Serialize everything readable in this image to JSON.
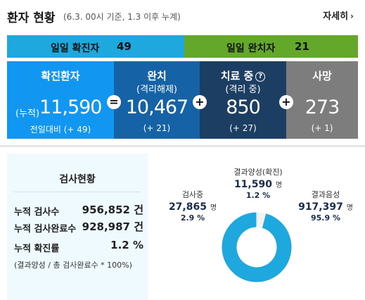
{
  "header": {
    "title": "환자 현황",
    "subtitle": "(6.3. 00시 기준, 1.3 이후 누계)",
    "more_label": "자세히",
    "more_icon": "chevron-right-icon"
  },
  "daily": {
    "confirmed_label": "일일 확진자",
    "confirmed_value": "49",
    "released_label": "일일 완치자",
    "released_value": "21"
  },
  "cards": {
    "confirmed": {
      "title": "확진환자",
      "prefix": "(누적)",
      "value": "11,590",
      "sub": "전일대비 (+ 49)",
      "color": "#1196f2"
    },
    "released": {
      "title": "완치",
      "title2": "(격리해제)",
      "value": "10,467",
      "sub": "(+ 21)",
      "color": "#1563a6"
    },
    "treating": {
      "title": "치료 중",
      "title2": "(격리 중)",
      "value": "850",
      "sub": "(+ 27)",
      "color": "#1c3e63",
      "help_icon": "question-circle-icon"
    },
    "deaths": {
      "title": "사망",
      "value": "273",
      "sub": "(+ 1)",
      "color": "#7d7d7d"
    }
  },
  "operators": {
    "eq": "=",
    "plus": "+"
  },
  "tests": {
    "title": "검사현황",
    "rows": [
      {
        "label": "누적 검사수",
        "value": "956,852 건"
      },
      {
        "label": "누적 검사완료수",
        "value": "928,987 건"
      },
      {
        "label": "누적 확진률",
        "value": "1.2 %"
      }
    ],
    "note": "(결과양성 / 총 검사완료수 * 100%)"
  },
  "chart_data": {
    "type": "pie",
    "categories": [
      "결과양성(확진)",
      "검사중",
      "결과음성"
    ],
    "values": [
      11590,
      27865,
      917397
    ],
    "percents": [
      1.2,
      2.9,
      95.9
    ],
    "units": "명",
    "colors": [
      "#e6e6e6",
      "#f2f2f2",
      "#1fa8dd"
    ],
    "labels": [
      {
        "name": "결과양성(확진)",
        "value": "11,590",
        "unit": "명",
        "pct": "1.2 %"
      },
      {
        "name": "검사중",
        "value": "27,865",
        "unit": "명",
        "pct": "2.9 %"
      },
      {
        "name": "결과음성",
        "value": "917,397",
        "unit": "명",
        "pct": "95.9 %"
      }
    ]
  }
}
